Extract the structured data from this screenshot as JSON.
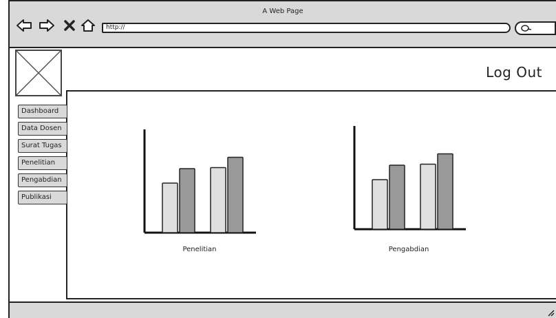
{
  "window": {
    "title": "A Web Page"
  },
  "toolbar": {
    "url": "http://"
  },
  "header": {
    "logout_label": "Log Out"
  },
  "sidebar": {
    "items": [
      {
        "label": "Dashboard"
      },
      {
        "label": "Data Dosen"
      },
      {
        "label": "Surat Tugas"
      },
      {
        "label": "Penelitian"
      },
      {
        "label": "Pengabdian"
      },
      {
        "label": "Publikasi"
      }
    ]
  },
  "chart_data": [
    {
      "type": "bar",
      "xlabel": "Penelitian",
      "categories": [
        "",
        ""
      ],
      "series": [
        {
          "values": [
            48,
            63
          ],
          "color": "#e0e0e0"
        },
        {
          "values": [
            62,
            73
          ],
          "color": "#999999"
        }
      ],
      "ylim": [
        0,
        100
      ],
      "grid": false
    },
    {
      "type": "bar",
      "xlabel": "Pengabdian",
      "categories": [
        "",
        ""
      ],
      "series": [
        {
          "values": [
            48,
            63
          ],
          "color": "#e0e0e0"
        },
        {
          "values": [
            62,
            73
          ],
          "color": "#999999"
        }
      ],
      "ylim": [
        0,
        100
      ],
      "grid": false
    }
  ]
}
